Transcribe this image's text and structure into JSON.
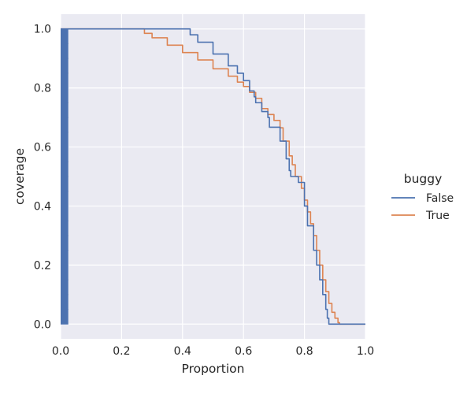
{
  "chart_data": {
    "type": "line",
    "title": "",
    "xlabel": "Proportion",
    "ylabel": "coverage",
    "xlim": [
      0.0,
      1.0
    ],
    "ylim": [
      -0.05,
      1.05
    ],
    "xticks": [
      "0.0",
      "0.2",
      "0.4",
      "0.6",
      "0.8",
      "1.0"
    ],
    "yticks": [
      "0.0",
      "0.2",
      "0.4",
      "0.6",
      "0.8",
      "1.0"
    ],
    "grid": true,
    "legend": {
      "title": "buggy",
      "placement": "outside-right"
    },
    "rug": {
      "x_range": [
        0.0,
        0.025
      ],
      "y_range": [
        0.0,
        1.0
      ],
      "color": "#4c72b0"
    },
    "series": [
      {
        "name": "False",
        "color": "#4c72b0",
        "x": [
          0.0,
          0.42,
          0.425,
          0.45,
          0.5,
          0.55,
          0.58,
          0.6,
          0.62,
          0.635,
          0.64,
          0.655,
          0.66,
          0.68,
          0.685,
          0.7,
          0.72,
          0.74,
          0.75,
          0.755,
          0.78,
          0.78,
          0.8,
          0.81,
          0.815,
          0.83,
          0.84,
          0.85,
          0.86,
          0.87,
          0.875,
          0.88,
          1.0
        ],
        "y": [
          1.0,
          1.0,
          0.98,
          0.955,
          0.915,
          0.875,
          0.85,
          0.825,
          0.79,
          0.77,
          0.75,
          0.75,
          0.72,
          0.7,
          0.667,
          0.667,
          0.62,
          0.56,
          0.52,
          0.5,
          0.5,
          0.48,
          0.4,
          0.333,
          0.333,
          0.25,
          0.2,
          0.15,
          0.1,
          0.05,
          0.02,
          0.0,
          0.0
        ]
      },
      {
        "name": "True",
        "color": "#dd8452",
        "x": [
          0.0,
          0.27,
          0.275,
          0.3,
          0.35,
          0.4,
          0.45,
          0.5,
          0.55,
          0.58,
          0.6,
          0.62,
          0.64,
          0.66,
          0.68,
          0.7,
          0.72,
          0.73,
          0.75,
          0.76,
          0.77,
          0.78,
          0.79,
          0.8,
          0.81,
          0.82,
          0.83,
          0.84,
          0.85,
          0.86,
          0.87,
          0.88,
          0.89,
          0.9,
          0.91,
          0.915,
          1.0
        ],
        "y": [
          1.0,
          1.0,
          0.985,
          0.97,
          0.945,
          0.92,
          0.895,
          0.865,
          0.84,
          0.82,
          0.805,
          0.785,
          0.765,
          0.73,
          0.71,
          0.69,
          0.665,
          0.62,
          0.57,
          0.54,
          0.5,
          0.5,
          0.46,
          0.42,
          0.38,
          0.34,
          0.3,
          0.25,
          0.2,
          0.15,
          0.11,
          0.07,
          0.04,
          0.02,
          0.005,
          0.0,
          0.0
        ]
      }
    ]
  }
}
